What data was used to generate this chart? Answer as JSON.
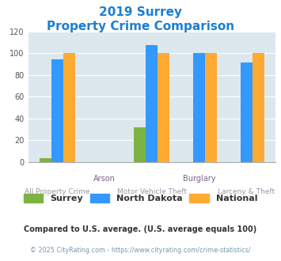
{
  "title_line1": "2019 Surrey",
  "title_line2": "Property Crime Comparison",
  "groups": [
    "All Property Crime",
    "Arson",
    "Motor Vehicle Theft",
    "Burglary",
    "Larceny & Theft"
  ],
  "top_labels": [
    "",
    "Arson",
    "",
    "Burglary",
    ""
  ],
  "bottom_labels": [
    "All Property Crime",
    "",
    "Motor Vehicle Theft",
    "",
    "Larceny & Theft"
  ],
  "surrey": [
    3,
    0,
    32,
    0,
    0
  ],
  "north_dakota": [
    94,
    0,
    107,
    100,
    91
  ],
  "national": [
    100,
    0,
    100,
    100,
    100
  ],
  "surrey_color": "#7cb342",
  "nd_color": "#3399ff",
  "national_color": "#ffaa33",
  "bg_color": "#dce8ee",
  "title_color": "#1a7fd4",
  "ylabel_max": 120,
  "yticks": [
    0,
    20,
    40,
    60,
    80,
    100,
    120
  ],
  "footnote1": "Compared to U.S. average. (U.S. average equals 100)",
  "footnote2": "© 2025 CityRating.com - https://www.cityrating.com/crime-statistics/",
  "footnote1_color": "#333333",
  "footnote2_color": "#7799aa",
  "label_top_color": "#776688",
  "label_bot_color": "#9999aa"
}
